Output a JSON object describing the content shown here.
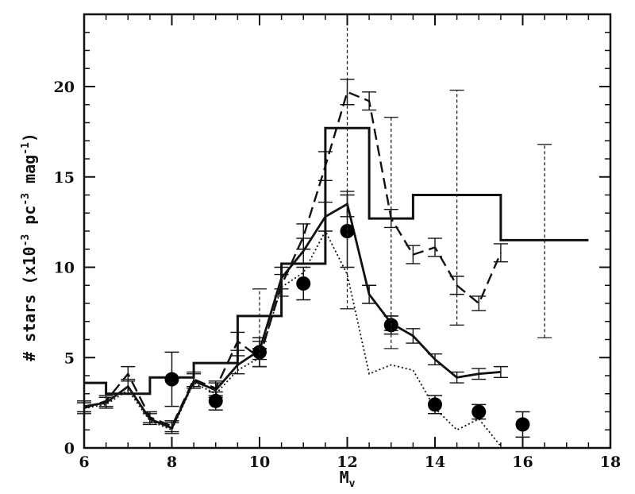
{
  "chart_data": {
    "type": "line",
    "xlabel": "M",
    "xlabel_sub": "v",
    "ylabel": "# stars (x10",
    "ylabel_exp1": "-3",
    "ylabel_mid": " pc",
    "ylabel_exp2": "-3",
    "ylabel_end": " mag",
    "ylabel_exp3": "-1",
    "ylabel_close": ")",
    "xlim": [
      6,
      18
    ],
    "ylim": [
      0,
      24
    ],
    "x_ticks": [
      6,
      8,
      10,
      12,
      14,
      16,
      18
    ],
    "y_ticks": [
      0,
      5,
      10,
      15,
      20
    ],
    "grid": false,
    "legend": "none",
    "series": [
      {
        "style": "histogram-solid",
        "x": [
          6,
          6.5,
          6.5,
          7.5,
          7.5,
          8.5,
          8.5,
          9.5,
          9.5,
          10.5,
          10.5,
          11.5,
          11.5,
          12.5,
          12.5,
          13.5,
          13.5,
          15.5,
          15.5,
          17.5
        ],
        "y": [
          3.6,
          3.6,
          3.0,
          3.0,
          3.9,
          3.9,
          4.7,
          4.7,
          7.3,
          7.3,
          10.2,
          10.2,
          17.7,
          17.7,
          12.7,
          12.7,
          14.0,
          14.0,
          11.5,
          11.5
        ]
      },
      {
        "style": "dashed-line",
        "x": [
          6,
          6.5,
          7,
          7.5,
          8,
          8.5,
          9,
          9.5,
          10,
          10.5,
          11,
          11.5,
          12,
          12.5,
          13,
          13.5,
          14,
          14.5,
          15,
          15.5
        ],
        "y": [
          2.2,
          2.6,
          4.1,
          1.7,
          1.2,
          3.8,
          3.3,
          5.9,
          5.0,
          9.0,
          11.7,
          15.6,
          19.7,
          19.2,
          12.7,
          10.7,
          11.1,
          9.0,
          8.0,
          10.8
        ],
        "err": [
          0.3,
          0.3,
          0.4,
          0.3,
          0.3,
          0.4,
          0.4,
          0.5,
          0.5,
          0.6,
          0.7,
          0.8,
          0.7,
          0.5,
          0.5,
          0.5,
          0.5,
          0.5,
          0.4,
          0.5
        ]
      },
      {
        "style": "solid-line",
        "x": [
          6,
          6.5,
          7,
          7.5,
          8,
          8.5,
          9,
          9.5,
          10,
          10.5,
          11,
          11.5,
          12,
          12.5,
          13,
          13.5,
          14,
          14.5,
          15,
          15.5
        ],
        "y": [
          2.3,
          2.5,
          3.4,
          1.6,
          1.1,
          3.7,
          3.2,
          4.6,
          5.4,
          9.4,
          10.9,
          12.8,
          13.5,
          8.5,
          6.9,
          6.2,
          4.9,
          3.9,
          4.1,
          4.2
        ],
        "err": [
          0.3,
          0.3,
          0.4,
          0.3,
          0.3,
          0.4,
          0.4,
          0.5,
          0.5,
          0.6,
          0.7,
          0.8,
          0.7,
          0.5,
          0.4,
          0.4,
          0.3,
          0.3,
          0.3,
          0.3
        ]
      },
      {
        "style": "dotted-line",
        "x": [
          6,
          6.5,
          7,
          7.5,
          8,
          8.5,
          9,
          9.5,
          10,
          10.5,
          11,
          11.5,
          12,
          12.5,
          13,
          13.5,
          14,
          14.5,
          15,
          15.5
        ],
        "y": [
          2.2,
          2.4,
          3.2,
          1.5,
          1.0,
          3.6,
          3.0,
          4.3,
          5.0,
          8.9,
          9.7,
          12.0,
          9.6,
          4.1,
          4.6,
          4.3,
          2.2,
          1.0,
          1.6,
          0.1
        ]
      },
      {
        "style": "filled-circles",
        "x": [
          8,
          9,
          10,
          11,
          12,
          13,
          14,
          15,
          16
        ],
        "y": [
          3.8,
          2.6,
          5.3,
          9.1,
          12.0,
          6.8,
          2.4,
          2.0,
          1.3
        ],
        "err": [
          1.5,
          0.5,
          0.8,
          0.9,
          2.0,
          0.5,
          0.5,
          0.4,
          0.7
        ]
      },
      {
        "style": "dotted-errorbars",
        "x": [
          10,
          12,
          13,
          14.5,
          16.5
        ],
        "y_low": [
          4.5,
          7.7,
          5.5,
          6.8,
          6.1
        ],
        "y_high": [
          8.8,
          24.0,
          18.3,
          19.8,
          16.8
        ]
      }
    ]
  }
}
